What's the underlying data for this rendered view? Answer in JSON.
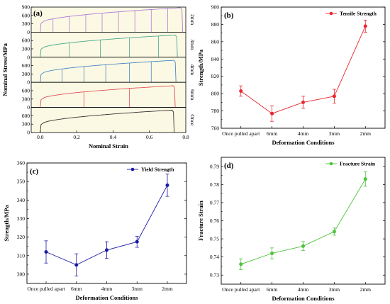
{
  "chart_data": [
    {
      "panel": "(a)",
      "type": "line",
      "xlabel": "Nominal Strain",
      "ylabel": "Nominal Stress/MPa",
      "xlim": [
        -0.05,
        0.8
      ],
      "xticks": [
        "0.0",
        "0.2",
        "0.4",
        "0.6",
        "0.8"
      ],
      "ylim": [
        0,
        900
      ],
      "yticks": [
        "0",
        "300",
        "600",
        "900"
      ],
      "background": "#fbf9e3",
      "subplots": [
        {
          "label": "2mm",
          "color": "#b07cd6",
          "yield": 348,
          "uts": 878,
          "fracture": 0.783,
          "reload_strains": [
            0.07,
            0.16,
            0.25,
            0.34,
            0.43,
            0.52,
            0.61,
            0.7
          ]
        },
        {
          "label": "3mm",
          "color": "#4aa88c",
          "yield": 318,
          "uts": 797,
          "fracture": 0.754,
          "reload_strains": [
            0.16,
            0.33,
            0.49,
            0.65
          ]
        },
        {
          "label": "4mm",
          "color": "#4a86c6",
          "yield": 313,
          "uts": 790,
          "fracture": 0.746,
          "reload_strains": [
            0.12,
            0.24,
            0.36,
            0.49,
            0.61
          ]
        },
        {
          "label": "6mm",
          "color": "#e0505a",
          "yield": 305,
          "uts": 777,
          "fracture": 0.742,
          "reload_strains": [
            0.24,
            0.49
          ]
        },
        {
          "label": "Once",
          "color": "#333333",
          "yield": 312,
          "uts": 803,
          "fracture": 0.736,
          "reload_strains": []
        }
      ]
    },
    {
      "panel": "(b)",
      "type": "line",
      "title": "",
      "categories": [
        "Once pulled apart",
        "6mm",
        "4mm",
        "3mm",
        "2mm"
      ],
      "series": [
        {
          "name": "Tensile Strength",
          "values": [
            803,
            777,
            790,
            797,
            878
          ],
          "errors": [
            6,
            9,
            7,
            8,
            7
          ]
        }
      ],
      "xlabel": "Deformation Conditions",
      "ylabel": "Strength/MPa",
      "ylim": [
        760,
        900
      ],
      "yticks": [
        "760",
        "780",
        "800",
        "820",
        "840",
        "860",
        "880",
        "900"
      ],
      "legend": "top-right",
      "color": "#e8252e"
    },
    {
      "panel": "(c)",
      "type": "line",
      "categories": [
        "Once pulled apart",
        "6mm",
        "4mm",
        "3mm",
        "2mm"
      ],
      "series": [
        {
          "name": "Yield Strength",
          "values": [
            312,
            305,
            313,
            317.5,
            348
          ],
          "errors": [
            6,
            6,
            4.5,
            3,
            6
          ]
        }
      ],
      "xlabel": "Deformation Conditions",
      "ylabel": "Strength/MPa",
      "ylim": [
        295,
        360
      ],
      "yticks": [
        "300",
        "310",
        "320",
        "330",
        "340",
        "350",
        "360"
      ],
      "legend": "top-right",
      "color": "#1a1aa6"
    },
    {
      "panel": "(d)",
      "type": "line",
      "categories": [
        "Once pulled apart",
        "6mm",
        "4mm",
        "3mm",
        "2mm"
      ],
      "series": [
        {
          "name": "Fracture Strain",
          "values": [
            0.736,
            0.742,
            0.746,
            0.754,
            0.783
          ],
          "errors": [
            0.003,
            0.003,
            0.0025,
            0.002,
            0.004
          ]
        }
      ],
      "xlabel": "Deformation Conditions",
      "ylabel": "Fracture Strain",
      "ylim": [
        0.725,
        0.795
      ],
      "yticks": [
        "0.73",
        "0.74",
        "0.75",
        "0.76",
        "0.77",
        "0.78",
        "0.79"
      ],
      "legend": "top-right",
      "color": "#4cc23a"
    }
  ]
}
